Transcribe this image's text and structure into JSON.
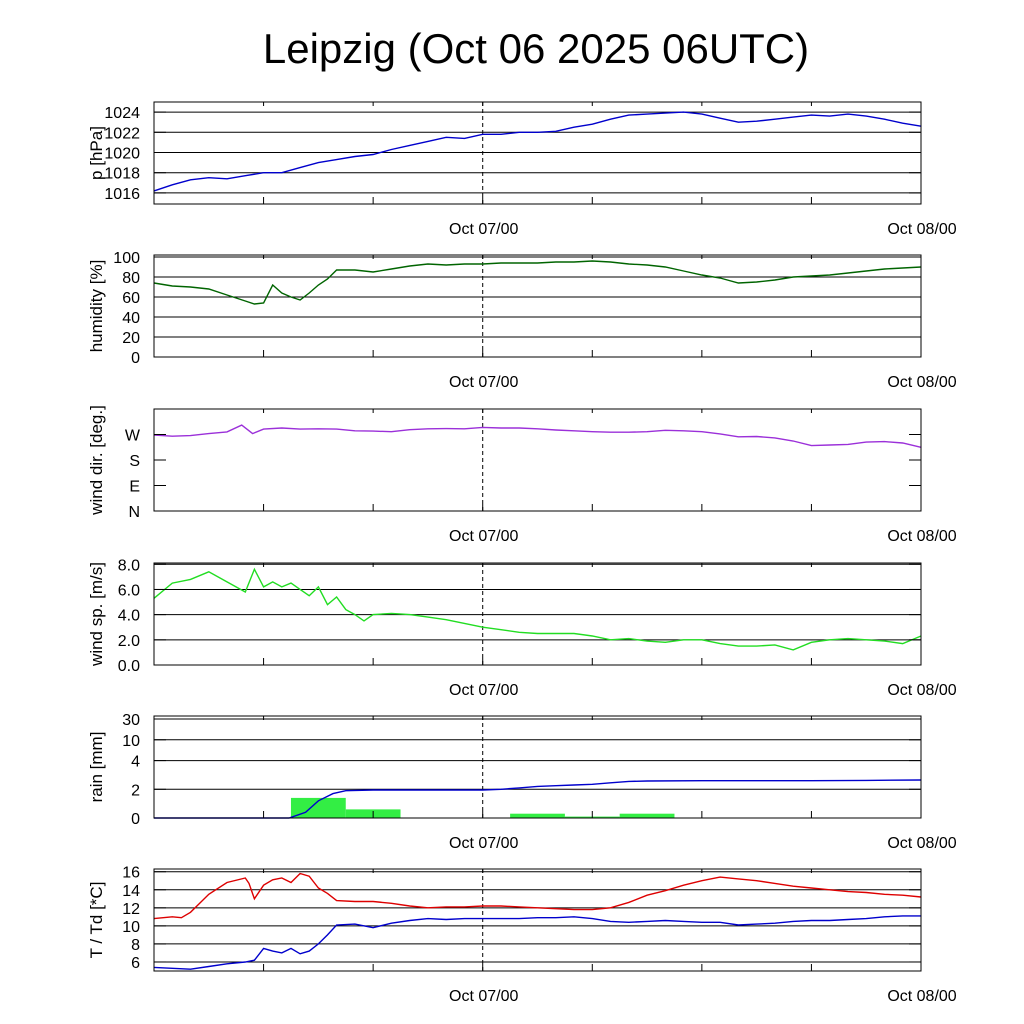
{
  "title": "Leipzig (Oct 06 2025 06UTC)",
  "chart_data": [
    {
      "type": "line",
      "ylabel": "p [hPa]",
      "ylim": [
        1014.9,
        1025.0
      ],
      "yticks": [
        1016,
        1018,
        1020,
        1022,
        1024
      ],
      "gridlines": [
        1016,
        1018,
        1020,
        1022,
        1024
      ],
      "xlim_hours": [
        0,
        42
      ],
      "time_labels": [
        {
          "label": "Oct 07/00",
          "hour": 18
        },
        {
          "label": "Oct 08/00",
          "hour": 42
        }
      ],
      "series": [
        {
          "color": "#0000cc",
          "x": [
            0,
            1,
            2,
            3,
            4,
            5,
            6,
            7,
            8,
            9,
            10,
            11,
            12,
            13,
            14,
            15,
            16,
            17,
            18,
            19,
            20,
            21,
            22,
            23,
            24,
            25,
            26,
            27,
            28,
            29,
            30,
            31,
            32,
            33,
            34,
            35,
            36,
            37,
            38,
            39,
            40,
            41,
            42
          ],
          "y": [
            1016.2,
            1016.8,
            1017.3,
            1017.5,
            1017.4,
            1017.7,
            1018.0,
            1018.0,
            1018.5,
            1019.0,
            1019.3,
            1019.6,
            1019.8,
            1020.3,
            1020.7,
            1021.1,
            1021.5,
            1021.4,
            1021.8,
            1021.8,
            1022.0,
            1022.0,
            1022.1,
            1022.5,
            1022.8,
            1023.3,
            1023.7,
            1023.8,
            1023.9,
            1024.0,
            1023.8,
            1023.4,
            1023.0,
            1023.1,
            1023.3,
            1023.5,
            1023.7,
            1023.6,
            1023.8,
            1023.6,
            1023.3,
            1022.9,
            1022.6
          ]
        }
      ]
    },
    {
      "type": "line",
      "ylabel": "humidity [%]",
      "ylim": [
        0,
        102
      ],
      "yticks": [
        0,
        20,
        40,
        60,
        80,
        100
      ],
      "gridlines": [
        20,
        40,
        60,
        80,
        100
      ],
      "xlim_hours": [
        0,
        42
      ],
      "time_labels": [
        {
          "label": "Oct 07/00",
          "hour": 18
        },
        {
          "label": "Oct 08/00",
          "hour": 42
        }
      ],
      "series": [
        {
          "color": "#006400",
          "x": [
            0,
            1,
            2,
            3,
            4,
            5,
            5.5,
            6,
            6.5,
            7,
            7.5,
            8,
            8.5,
            9,
            9.5,
            10,
            11,
            12,
            13,
            14,
            15,
            16,
            17,
            18,
            19,
            20,
            21,
            22,
            23,
            24,
            25,
            26,
            27,
            28,
            29,
            30,
            31,
            32,
            33,
            34,
            35,
            36,
            37,
            38,
            39,
            40,
            41,
            42
          ],
          "y": [
            74,
            71,
            70,
            68,
            62,
            56,
            53,
            54,
            72,
            64,
            60,
            57,
            64,
            72,
            78,
            87,
            87,
            85,
            88,
            91,
            93,
            92,
            93,
            93,
            94,
            94,
            94,
            95,
            95,
            96,
            95,
            93,
            92,
            90,
            86,
            82,
            79,
            74,
            75,
            77,
            80,
            81,
            82,
            84,
            86,
            88,
            89,
            90
          ]
        }
      ]
    },
    {
      "type": "line",
      "ylabel": "wind dir. [deg.]",
      "ylim": [
        0,
        360
      ],
      "yticks": [
        0,
        90,
        180,
        270
      ],
      "ytick_labels": [
        "N",
        "E",
        "S",
        "W"
      ],
      "gridlines": [],
      "xlim_hours": [
        0,
        42
      ],
      "time_labels": [
        {
          "label": "Oct 07/00",
          "hour": 18
        },
        {
          "label": "Oct 08/00",
          "hour": 42
        }
      ],
      "series": [
        {
          "color": "#9b30d9",
          "x": [
            0,
            1,
            2,
            3,
            4,
            4.8,
            5.4,
            6,
            7,
            8,
            9,
            10,
            11,
            12,
            13,
            14,
            15,
            16,
            17,
            18,
            19,
            20,
            21,
            22,
            23,
            24,
            25,
            26,
            27,
            28,
            29,
            30,
            31,
            32,
            33,
            34,
            35,
            36,
            37,
            38,
            39,
            40,
            41,
            42
          ],
          "y": [
            268,
            264,
            266,
            273,
            279,
            303,
            273,
            289,
            293,
            289,
            290,
            289,
            283,
            282,
            280,
            287,
            290,
            291,
            290,
            295,
            293,
            293,
            290,
            286,
            283,
            280,
            278,
            278,
            280,
            285,
            283,
            280,
            272,
            262,
            263,
            258,
            247,
            231,
            233,
            235,
            243,
            245,
            240,
            225
          ]
        }
      ]
    },
    {
      "type": "line",
      "ylabel": "wind sp. [m/s]",
      "ylim": [
        0,
        8.1
      ],
      "yticks": [
        0,
        2,
        4,
        6,
        8
      ],
      "ytick_labels": [
        "0.0",
        "2.0",
        "4.0",
        "6.0",
        "8.0"
      ],
      "gridlines": [
        2,
        4,
        6,
        8
      ],
      "xlim_hours": [
        0,
        42
      ],
      "time_labels": [
        {
          "label": "Oct 07/00",
          "hour": 18
        },
        {
          "label": "Oct 08/00",
          "hour": 42
        }
      ],
      "series": [
        {
          "color": "#22dd22",
          "x": [
            0,
            1,
            2,
            3,
            4,
            5,
            5.5,
            6,
            6.5,
            7,
            7.5,
            8,
            8.5,
            9,
            9.5,
            10,
            10.5,
            11,
            11.5,
            12,
            13,
            14,
            15,
            16,
            17,
            18,
            19,
            20,
            21,
            22,
            23,
            24,
            25,
            26,
            27,
            28,
            29,
            30,
            31,
            32,
            33,
            34,
            35,
            36,
            37,
            38,
            39,
            40,
            41,
            42
          ],
          "y": [
            5.3,
            6.5,
            6.8,
            7.4,
            6.6,
            5.8,
            7.6,
            6.2,
            6.6,
            6.2,
            6.5,
            6.0,
            5.5,
            6.2,
            4.8,
            5.4,
            4.4,
            4.0,
            3.5,
            4.0,
            4.1,
            4.0,
            3.8,
            3.6,
            3.3,
            3.0,
            2.8,
            2.6,
            2.5,
            2.5,
            2.5,
            2.3,
            2.0,
            2.1,
            1.9,
            1.8,
            2.0,
            2.0,
            1.7,
            1.5,
            1.5,
            1.6,
            1.2,
            1.8,
            2.0,
            2.1,
            2.0,
            1.9,
            1.7,
            2.3
          ]
        }
      ]
    },
    {
      "type": "bar",
      "ylabel": "rain [mm]",
      "yticks": [
        0,
        2,
        4,
        10,
        30
      ],
      "ytick_labels": [
        "0",
        "2",
        "4",
        "10",
        "30"
      ],
      "gridlines": [
        2,
        4,
        10,
        30
      ],
      "ylim": [
        0,
        30
      ],
      "xlim_hours": [
        0,
        42
      ],
      "time_labels": [
        {
          "label": "Oct 07/00",
          "hour": 18
        },
        {
          "label": "Oct 08/00",
          "hour": 42
        }
      ],
      "bars": {
        "color": "#33ee44",
        "x_start": [
          7.5,
          10.5,
          19.5,
          22.5,
          25.5
        ],
        "x_end": [
          10.5,
          13.5,
          22.5,
          25.5,
          28.5
        ],
        "values": [
          1.4,
          0.6,
          0.3,
          0.1,
          0.3
        ]
      },
      "series": [
        {
          "color": "#0000cc",
          "x": [
            0,
            7.4,
            8.3,
            9.0,
            9.8,
            10.5,
            12,
            14,
            16,
            18,
            19,
            20,
            21,
            22,
            23,
            24,
            25,
            26,
            27,
            30,
            33,
            36,
            39,
            42
          ],
          "y": [
            0,
            0,
            0.4,
            1.2,
            1.7,
            1.9,
            1.95,
            1.95,
            1.95,
            1.95,
            2.0,
            2.1,
            2.2,
            2.25,
            2.3,
            2.35,
            2.45,
            2.55,
            2.58,
            2.6,
            2.6,
            2.6,
            2.62,
            2.65
          ]
        }
      ]
    },
    {
      "type": "line",
      "ylabel": "T / Td [*C]",
      "ylim": [
        5.0,
        16.3
      ],
      "yticks": [
        6,
        8,
        10,
        12,
        14,
        16
      ],
      "gridlines": [
        6,
        8,
        10,
        12,
        14,
        16
      ],
      "xlim_hours": [
        0,
        42
      ],
      "time_labels": [
        {
          "label": "Oct 07/00",
          "hour": 18
        },
        {
          "label": "Oct 08/00",
          "hour": 42
        }
      ],
      "series": [
        {
          "color": "#dd0000",
          "x": [
            0,
            1,
            1.5,
            2,
            2.5,
            3,
            4,
            5,
            5.2,
            5.5,
            6,
            6.5,
            7,
            7.5,
            8,
            8.5,
            9,
            9.5,
            10,
            11,
            12,
            13,
            14,
            15,
            16,
            17,
            18,
            19,
            20,
            21,
            22,
            23,
            24,
            25,
            26,
            27,
            28,
            29,
            30,
            31,
            32,
            33,
            34,
            35,
            36,
            37,
            38,
            39,
            40,
            41,
            42
          ],
          "y": [
            10.8,
            11.0,
            10.9,
            11.5,
            12.5,
            13.5,
            14.8,
            15.3,
            14.7,
            13.0,
            14.5,
            15.1,
            15.3,
            14.8,
            15.8,
            15.5,
            14.2,
            13.6,
            12.8,
            12.7,
            12.7,
            12.5,
            12.2,
            12.0,
            12.1,
            12.1,
            12.2,
            12.2,
            12.1,
            12.0,
            11.9,
            11.8,
            11.8,
            12.0,
            12.6,
            13.4,
            13.9,
            14.5,
            15.0,
            15.4,
            15.2,
            15.0,
            14.7,
            14.4,
            14.2,
            14.0,
            13.8,
            13.7,
            13.5,
            13.4,
            13.2
          ]
        },
        {
          "color": "#0000cc",
          "x": [
            0,
            1,
            2,
            3,
            4,
            5,
            5.5,
            6,
            6.5,
            7,
            7.5,
            8,
            8.5,
            9,
            9.5,
            10,
            11,
            12,
            13,
            14,
            15,
            16,
            17,
            18,
            19,
            20,
            21,
            22,
            23,
            24,
            25,
            26,
            27,
            28,
            29,
            30,
            31,
            32,
            33,
            34,
            35,
            36,
            37,
            38,
            39,
            40,
            41,
            42
          ],
          "y": [
            5.4,
            5.3,
            5.2,
            5.5,
            5.8,
            6.0,
            6.2,
            7.5,
            7.2,
            7.0,
            7.5,
            6.9,
            7.2,
            8.0,
            9.0,
            10.1,
            10.2,
            9.8,
            10.3,
            10.6,
            10.8,
            10.7,
            10.8,
            10.8,
            10.8,
            10.8,
            10.9,
            10.9,
            11.0,
            10.8,
            10.5,
            10.4,
            10.5,
            10.6,
            10.5,
            10.4,
            10.4,
            10.1,
            10.2,
            10.3,
            10.5,
            10.6,
            10.6,
            10.7,
            10.8,
            11.0,
            11.1,
            11.1
          ]
        }
      ]
    }
  ]
}
